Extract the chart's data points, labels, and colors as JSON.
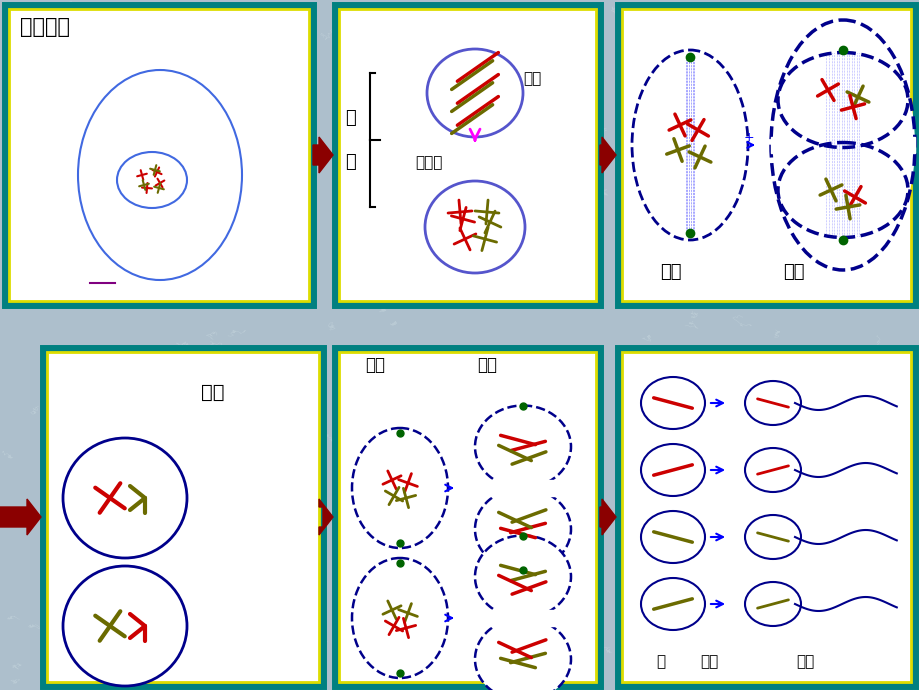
{
  "bg_color": "#adbfcc",
  "panel_bg": "#ffffff",
  "border_outer": "#008080",
  "border_inner": "#dddd00",
  "arrow_color": "#8b0000",
  "colors": {
    "red": "#cc0000",
    "olive": "#6b6b00",
    "darkblue": "#00008b",
    "blue": "#0000cc",
    "green": "#006400",
    "pink": "#ff00ff",
    "navy": "#000080",
    "purple": "#800080"
  },
  "panels": {
    "p1": [
      5,
      5,
      308,
      300
    ],
    "p2": [
      335,
      5,
      265,
      300
    ],
    "p3": [
      618,
      5,
      297,
      300
    ],
    "p4": [
      43,
      348,
      280,
      338
    ],
    "p5": [
      335,
      348,
      265,
      338
    ],
    "p6": [
      618,
      348,
      297,
      338
    ]
  }
}
